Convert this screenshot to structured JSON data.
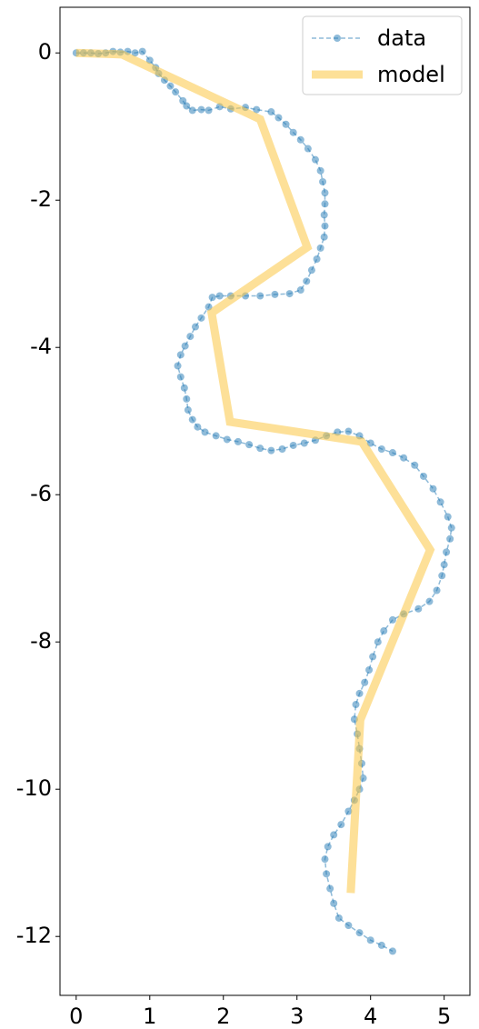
{
  "chart_data": {
    "type": "line",
    "xlim": [
      -0.22,
      5.35
    ],
    "ylim": [
      -12.8,
      0.62
    ],
    "xticks": [
      0,
      1,
      2,
      3,
      4,
      5
    ],
    "yticks": [
      0,
      -2,
      -4,
      -6,
      -8,
      -10,
      -12
    ],
    "legend": "upper right",
    "series": [
      {
        "name": "data",
        "color": "#1f77b4",
        "style": "dashed-markers",
        "x": [
          0,
          0.1,
          0.2,
          0.3,
          0.4,
          0.5,
          0.6,
          0.7,
          0.8,
          0.9,
          1.0,
          1.08,
          1.12,
          1.2,
          1.28,
          1.35,
          1.45,
          1.5,
          1.58,
          1.7,
          1.8,
          1.95,
          2.1,
          2.3,
          2.45,
          2.65,
          2.75,
          2.85,
          2.95,
          3.05,
          3.15,
          3.25,
          3.32,
          3.35,
          3.38,
          3.38,
          3.37,
          3.38,
          3.37,
          3.32,
          3.27,
          3.2,
          3.13,
          3.05,
          2.9,
          2.7,
          2.5,
          2.3,
          2.1,
          1.95,
          1.85,
          1.8,
          1.7,
          1.62,
          1.55,
          1.48,
          1.42,
          1.38,
          1.42,
          1.47,
          1.5,
          1.52,
          1.58,
          1.65,
          1.75,
          1.9,
          2.05,
          2.2,
          2.35,
          2.5,
          2.65,
          2.8,
          2.95,
          3.1,
          3.25,
          3.4,
          3.55,
          3.7,
          3.85,
          4.0,
          4.15,
          4.3,
          4.45,
          4.6,
          4.72,
          4.85,
          4.95,
          5.05,
          5.1,
          5.08,
          5.03,
          5.0,
          4.97,
          4.9,
          4.8,
          4.65,
          4.45,
          4.3,
          4.18,
          4.1,
          4.03,
          3.98,
          3.92,
          3.85,
          3.8,
          3.78,
          3.82,
          3.85,
          3.88,
          3.9,
          3.85,
          3.78,
          3.7,
          3.6,
          3.5,
          3.42,
          3.38,
          3.4,
          3.45,
          3.5,
          3.57,
          3.7,
          3.85,
          4.0,
          4.15,
          4.3
        ],
        "values": [
          0,
          0,
          0,
          -0.01,
          0,
          0.02,
          0.01,
          0.02,
          0,
          0.02,
          -0.1,
          -0.2,
          -0.28,
          -0.37,
          -0.45,
          -0.53,
          -0.65,
          -0.72,
          -0.78,
          -0.77,
          -0.78,
          -0.73,
          -0.76,
          -0.74,
          -0.77,
          -0.8,
          -0.88,
          -0.97,
          -1.08,
          -1.18,
          -1.3,
          -1.45,
          -1.6,
          -1.75,
          -1.9,
          -2.05,
          -2.2,
          -2.35,
          -2.5,
          -2.65,
          -2.8,
          -2.95,
          -3.1,
          -3.22,
          -3.27,
          -3.28,
          -3.3,
          -3.3,
          -3.3,
          -3.3,
          -3.32,
          -3.45,
          -3.6,
          -3.72,
          -3.85,
          -3.98,
          -4.1,
          -4.25,
          -4.4,
          -4.55,
          -4.7,
          -4.85,
          -4.98,
          -5.08,
          -5.15,
          -5.2,
          -5.25,
          -5.28,
          -5.32,
          -5.37,
          -5.4,
          -5.38,
          -5.33,
          -5.3,
          -5.26,
          -5.2,
          -5.15,
          -5.14,
          -5.2,
          -5.3,
          -5.38,
          -5.43,
          -5.5,
          -5.6,
          -5.75,
          -5.92,
          -6.1,
          -6.3,
          -6.45,
          -6.6,
          -6.78,
          -6.95,
          -7.1,
          -7.3,
          -7.45,
          -7.55,
          -7.62,
          -7.7,
          -7.85,
          -8.0,
          -8.2,
          -8.38,
          -8.55,
          -8.7,
          -8.85,
          -9.05,
          -9.25,
          -9.45,
          -9.65,
          -9.85,
          -10.0,
          -10.15,
          -10.3,
          -10.48,
          -10.62,
          -10.78,
          -10.95,
          -11.15,
          -11.35,
          -11.55,
          -11.75,
          -11.85,
          -11.95,
          -12.05,
          -12.12,
          -12.2
        ]
      },
      {
        "name": "model",
        "color": "#fcc743",
        "style": "thick",
        "x": [
          0,
          0.62,
          2.5,
          3.14,
          1.84,
          2.09,
          3.88,
          4.81,
          3.86,
          3.73
        ],
        "values": [
          0,
          -0.02,
          -0.9,
          -2.64,
          -3.53,
          -5.01,
          -5.28,
          -6.75,
          -9.06,
          -11.41
        ]
      }
    ]
  }
}
